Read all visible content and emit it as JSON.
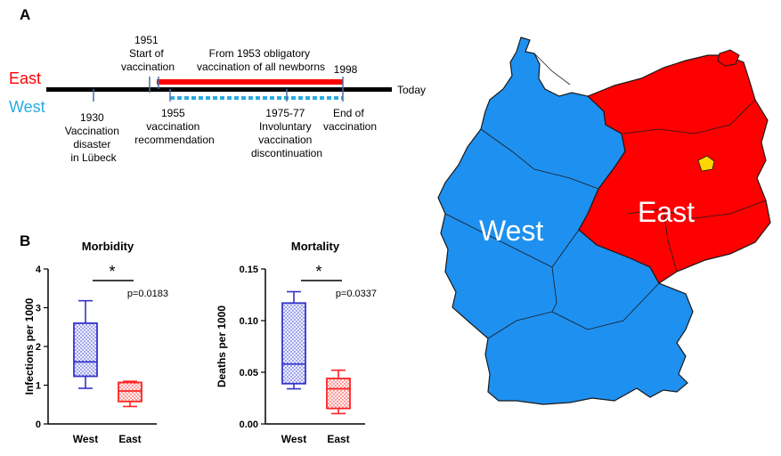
{
  "panels": {
    "a": "A",
    "b": "B"
  },
  "timeline": {
    "east_label": "East",
    "west_label": "West",
    "today_label": "Today",
    "colors": {
      "east": "#ff0000",
      "west": "#29abe2",
      "axis": "#000000",
      "tick": "#4a6fa5"
    },
    "above": [
      {
        "lines": [
          "1951",
          "Start of",
          "vaccination"
        ]
      },
      {
        "lines": [
          "From 1953 obligatory",
          "vaccination of all newborns"
        ]
      },
      {
        "lines": [
          "1998"
        ]
      }
    ],
    "below": [
      {
        "lines": [
          "1930",
          "Vaccination",
          "disaster",
          "in Lübeck"
        ]
      },
      {
        "lines": [
          "1955",
          "vaccination",
          "recommendation"
        ]
      },
      {
        "lines": [
          "1975-77",
          "Involuntary",
          "vaccination",
          "discontinuation"
        ]
      },
      {
        "lines": [
          "End of",
          "vaccination"
        ]
      }
    ]
  },
  "map": {
    "west_label": "West",
    "east_label": "East",
    "colors": {
      "west": "#1e90f0",
      "east": "#ff0000",
      "berlin": "#ffd700",
      "border": "#1a1a1a"
    }
  },
  "chart_data": [
    {
      "type": "box",
      "title": "Morbidity",
      "ylabel": "Infections per 1000",
      "categories": [
        "West",
        "East"
      ],
      "ylim": [
        0,
        4
      ],
      "yticks": [
        "0",
        "1",
        "2",
        "3",
        "4"
      ],
      "series": [
        {
          "category": "West",
          "min": 0.92,
          "q1": 1.23,
          "median": 1.6,
          "q3": 2.6,
          "max": 3.18,
          "color": "#3333cc"
        },
        {
          "category": "East",
          "min": 0.45,
          "q1": 0.58,
          "median": 0.85,
          "q3": 1.07,
          "max": 1.1,
          "color": "#ff2222"
        }
      ],
      "annotation": {
        "star": "*",
        "pvalue": "p=0.0183"
      }
    },
    {
      "type": "box",
      "title": "Mortality",
      "ylabel": "Deaths per 1000",
      "categories": [
        "West",
        "East"
      ],
      "ylim": [
        0,
        0.15
      ],
      "yticks": [
        "0.00",
        "0.05",
        "0.10",
        "0.15"
      ],
      "series": [
        {
          "category": "West",
          "min": 0.034,
          "q1": 0.039,
          "median": 0.058,
          "q3": 0.117,
          "max": 0.128,
          "color": "#3333cc"
        },
        {
          "category": "East",
          "min": 0.01,
          "q1": 0.015,
          "median": 0.034,
          "q3": 0.044,
          "max": 0.052,
          "color": "#ff2222"
        }
      ],
      "annotation": {
        "star": "*",
        "pvalue": "p=0.0337"
      }
    }
  ]
}
